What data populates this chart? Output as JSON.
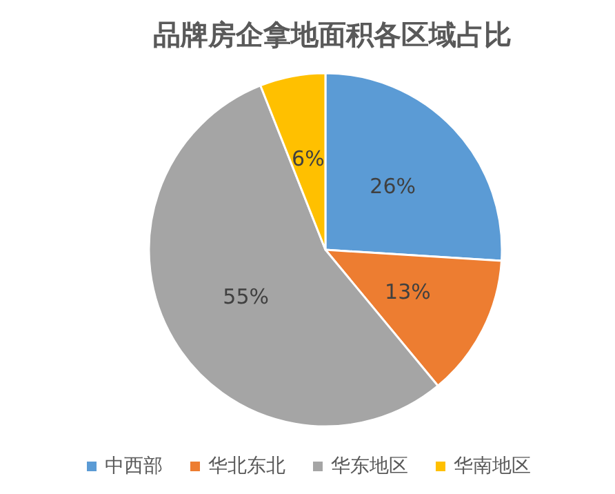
{
  "chart_data": {
    "type": "pie",
    "title": "品牌房企拿地面积各区域占比",
    "categories": [
      "中西部",
      "华北东北",
      "华东地区",
      "华南地区"
    ],
    "values": [
      26,
      13,
      55,
      6
    ],
    "colors": [
      "#5b9bd5",
      "#ed7d31",
      "#a5a5a5",
      "#ffc000"
    ],
    "value_labels": [
      "26%",
      "13%",
      "55%",
      "6%"
    ],
    "legend": "bottom"
  }
}
